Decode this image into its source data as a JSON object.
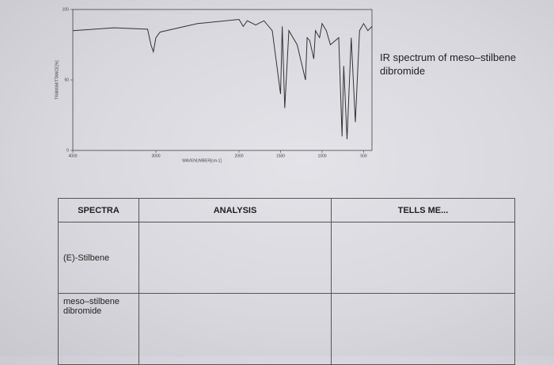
{
  "chart_data": {
    "type": "line",
    "x_label": "WAVENUMBER[cm-1]",
    "y_label": "TRANSMITTANCE[%]",
    "x": [
      4000,
      3500,
      3100,
      3060,
      3030,
      3000,
      2950,
      2500,
      2000,
      1950,
      1900,
      1800,
      1700,
      1600,
      1500,
      1480,
      1450,
      1400,
      1300,
      1200,
      1180,
      1150,
      1100,
      1080,
      1030,
      1000,
      950,
      900,
      800,
      760,
      740,
      700,
      650,
      600,
      550,
      500,
      450,
      400
    ],
    "values": [
      85,
      87,
      86,
      75,
      70,
      80,
      84,
      90,
      93,
      88,
      92,
      89,
      92,
      85,
      40,
      88,
      30,
      85,
      75,
      50,
      80,
      78,
      65,
      85,
      80,
      90,
      85,
      75,
      80,
      10,
      60,
      8,
      80,
      20,
      85,
      90,
      85,
      88
    ],
    "color": "#333333",
    "xlim": [
      4000,
      400
    ],
    "xticks": [
      4000,
      3000,
      2000,
      1500,
      1000,
      500
    ],
    "ylim": [
      0,
      100
    ],
    "yticks": [
      0,
      50,
      100
    ]
  },
  "caption": "IR spectrum of meso–stilbene dibromide",
  "table": {
    "header": [
      "SPECTRA",
      "ANALYSIS",
      "TELLS ME..."
    ],
    "rows": [
      [
        "(E)-Stilbene"
      ],
      [
        "meso–stilbene dibromide"
      ]
    ]
  }
}
